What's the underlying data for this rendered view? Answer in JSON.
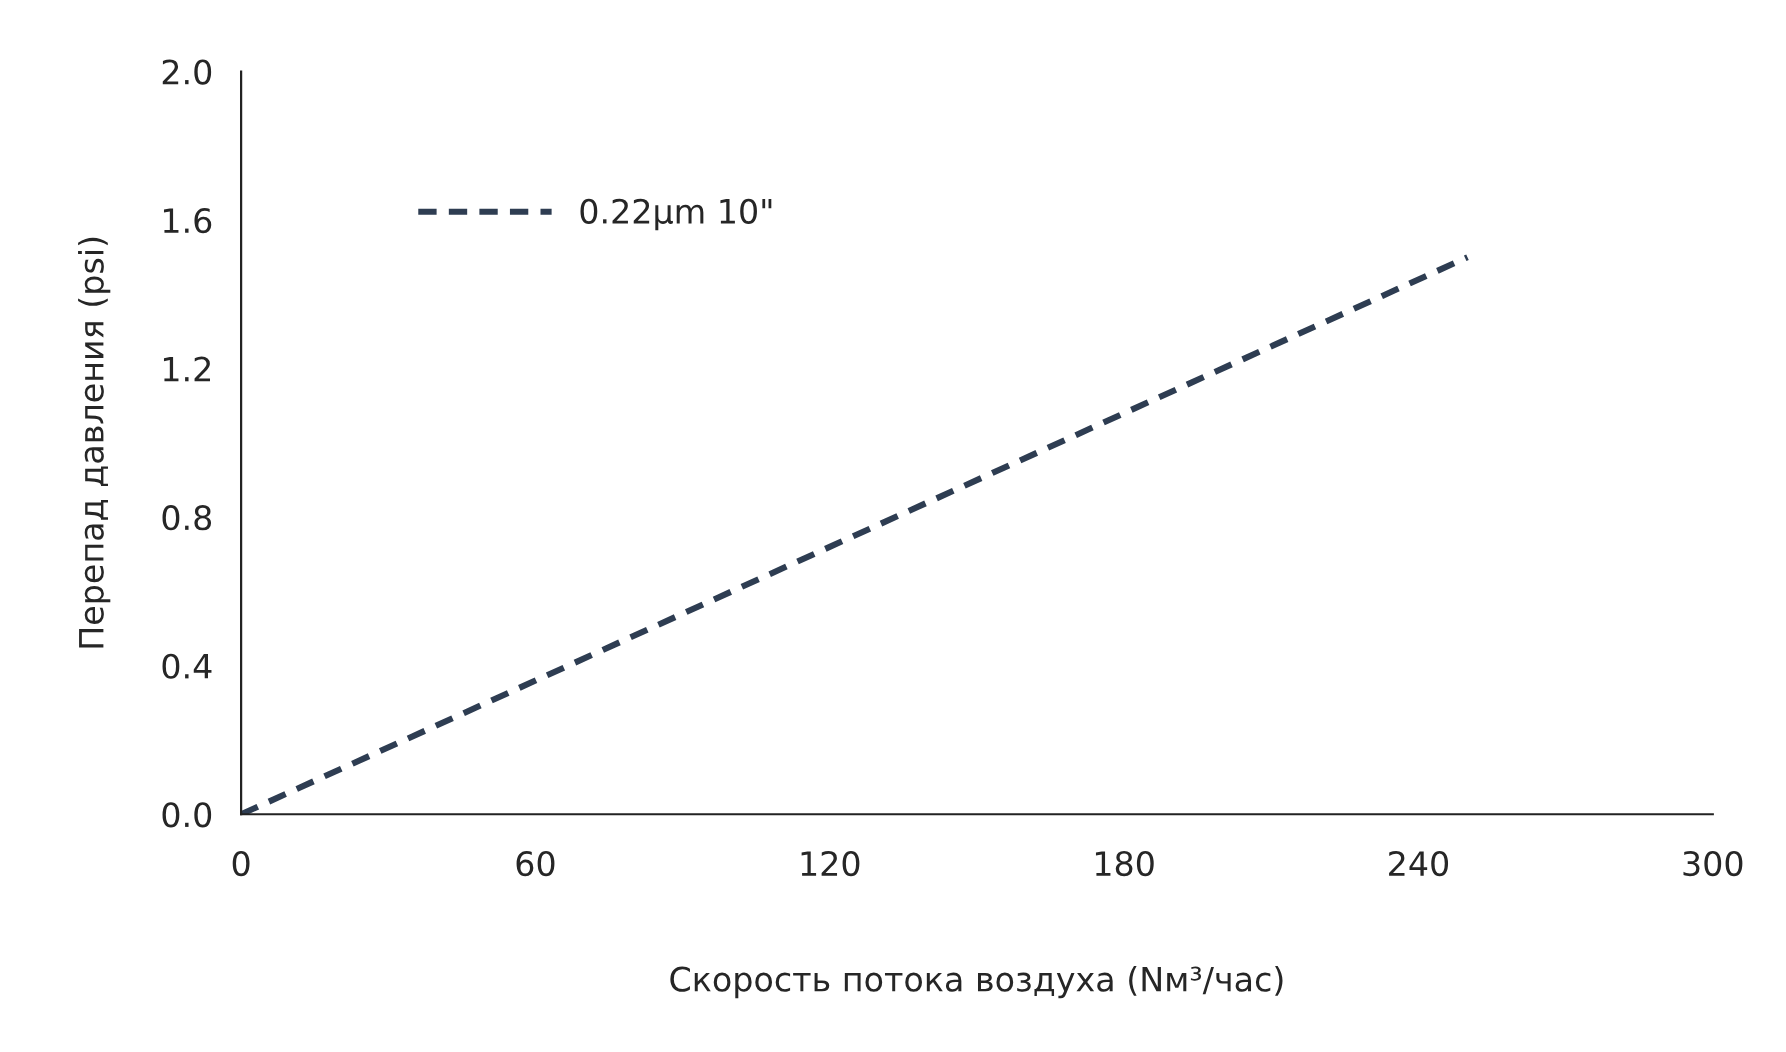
{
  "chart_data": {
    "type": "line",
    "xlabel": "Скорость потока воздуха (Nм³/час)",
    "ylabel": "Перепад давления (psi)",
    "x": [
      0,
      250
    ],
    "series": [
      {
        "name": "0.22μm 10\"",
        "color": "#2e3d52",
        "values": [
          0,
          1.5
        ]
      }
    ],
    "xlim": [
      0,
      300
    ],
    "xticks": [
      0,
      60,
      120,
      180,
      240,
      300
    ],
    "ylim": [
      0,
      2.0
    ],
    "yticks": [
      {
        "value": 0,
        "label": "0.0"
      },
      {
        "value": 0.4,
        "label": "0.4"
      },
      {
        "value": 0.8,
        "label": "0.8"
      },
      {
        "value": 1.2,
        "label": "1.2"
      },
      {
        "value": 1.6,
        "label": "1.6"
      },
      {
        "value": 2.0,
        "label": "2.0"
      }
    ],
    "grid": false,
    "legend": "top left",
    "line_style": "dashed",
    "marker": "none"
  }
}
